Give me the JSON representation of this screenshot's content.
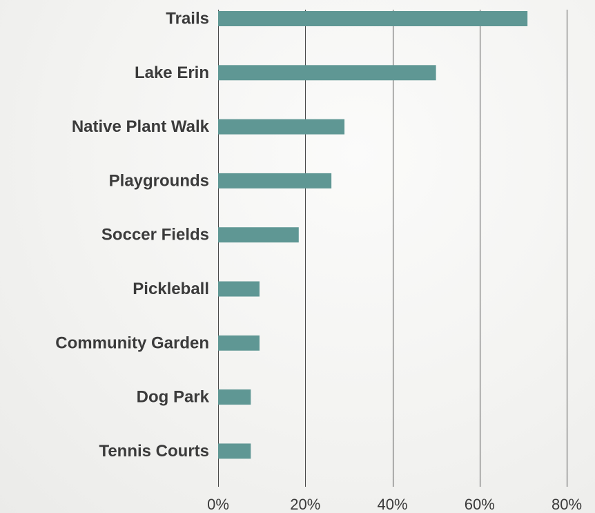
{
  "chart_data": {
    "type": "bar",
    "orientation": "horizontal",
    "categories": [
      "Trails",
      "Lake Erin",
      "Native Plant Walk",
      "Playgrounds",
      "Soccer Fields",
      "Pickleball",
      "Community Garden",
      "Dog Park",
      "Tennis Courts"
    ],
    "values": [
      71,
      50,
      29,
      26,
      18.5,
      9.5,
      9.5,
      7.5,
      7.5
    ],
    "x_ticks": [
      "0%",
      "20%",
      "40%",
      "60%",
      "80%"
    ],
    "xlim": [
      0,
      80
    ],
    "title": "",
    "xlabel": "",
    "ylabel": "",
    "grid": true,
    "bar_color": "#5f9794"
  }
}
